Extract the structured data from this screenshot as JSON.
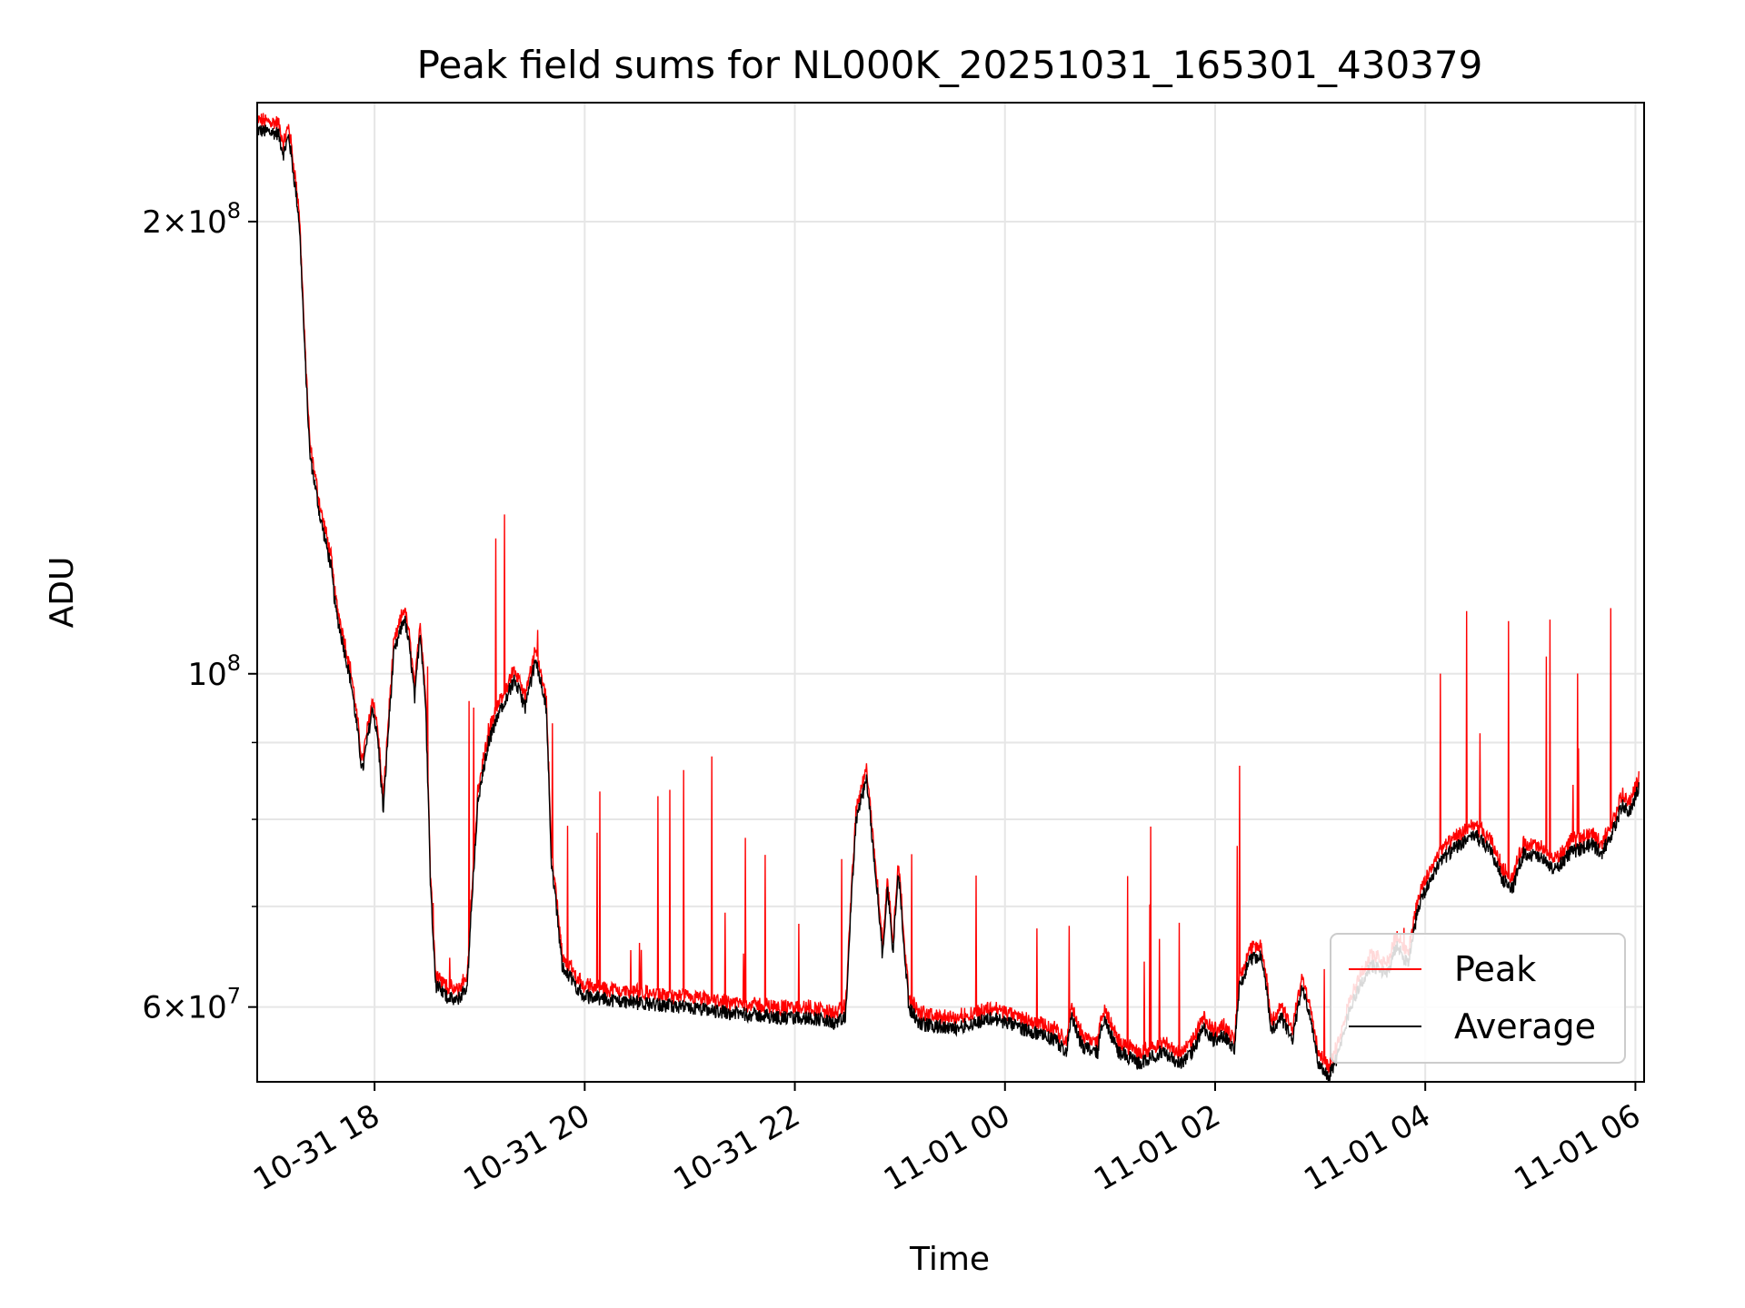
{
  "chart_data": {
    "type": "line",
    "title": "Peak field sums for NL000K_20251031_165301_430379",
    "xlabel": "Time",
    "ylabel": "ADU",
    "yscale": "log",
    "x_unit": "hours since 10-31 16:53",
    "xlim": [
      0.0,
      13.2
    ],
    "ylim": [
      53500000,
      240000000
    ],
    "x_ticks": [
      {
        "value": 1.117,
        "label": "10-31 18"
      },
      {
        "value": 3.117,
        "label": "10-31 20"
      },
      {
        "value": 5.117,
        "label": "10-31 22"
      },
      {
        "value": 7.117,
        "label": "11-01 00"
      },
      {
        "value": 9.117,
        "label": "11-01 02"
      },
      {
        "value": 11.117,
        "label": "11-01 04"
      },
      {
        "value": 13.117,
        "label": "11-01 06"
      }
    ],
    "y_major_ticks": [
      {
        "value": 60000000,
        "mant": "6",
        "exp": "7"
      },
      {
        "value": 100000000,
        "mant": "",
        "exp": "8"
      },
      {
        "value": 200000000,
        "mant": "2",
        "exp": "8"
      }
    ],
    "y_minor_ticks": [
      70000000,
      80000000,
      90000000
    ],
    "grid": true,
    "legend_position": "bottom-right",
    "series": [
      {
        "name": "Peak",
        "color": "#ff0000"
      },
      {
        "name": "Average",
        "color": "#000000"
      }
    ],
    "average_profile": [
      [
        0.0,
        230000000
      ],
      [
        0.2,
        229000000
      ],
      [
        0.25,
        222000000
      ],
      [
        0.3,
        228000000
      ],
      [
        0.4,
        200000000
      ],
      [
        0.45,
        165000000
      ],
      [
        0.5,
        140000000
      ],
      [
        0.6,
        127000000
      ],
      [
        0.7,
        118000000
      ],
      [
        0.75,
        110000000
      ],
      [
        0.8,
        106000000
      ],
      [
        0.9,
        98000000
      ],
      [
        1.0,
        86000000
      ],
      [
        1.1,
        95000000
      ],
      [
        1.15,
        90000000
      ],
      [
        1.2,
        81000000
      ],
      [
        1.3,
        103000000
      ],
      [
        1.4,
        109000000
      ],
      [
        1.45,
        104000000
      ],
      [
        1.5,
        96000000
      ],
      [
        1.55,
        107000000
      ],
      [
        1.6,
        96000000
      ],
      [
        1.65,
        72000000
      ],
      [
        1.7,
        62000000
      ],
      [
        1.8,
        61000000
      ],
      [
        1.9,
        60500000
      ],
      [
        2.0,
        62000000
      ],
      [
        2.05,
        72000000
      ],
      [
        2.1,
        82000000
      ],
      [
        2.2,
        90000000
      ],
      [
        2.35,
        96000000
      ],
      [
        2.45,
        99000000
      ],
      [
        2.55,
        95000000
      ],
      [
        2.65,
        102000000
      ],
      [
        2.75,
        95000000
      ],
      [
        2.8,
        75000000
      ],
      [
        2.9,
        64000000
      ],
      [
        3.1,
        61000000
      ],
      [
        3.5,
        60500000
      ],
      [
        4.0,
        60000000
      ],
      [
        4.5,
        59500000
      ],
      [
        5.0,
        59000000
      ],
      [
        5.3,
        59000000
      ],
      [
        5.5,
        58500000
      ],
      [
        5.6,
        59000000
      ],
      [
        5.7,
        80000000
      ],
      [
        5.8,
        85000000
      ],
      [
        5.85,
        78000000
      ],
      [
        5.9,
        72000000
      ],
      [
        5.95,
        65000000
      ],
      [
        6.0,
        72000000
      ],
      [
        6.05,
        65000000
      ],
      [
        6.1,
        74000000
      ],
      [
        6.2,
        60000000
      ],
      [
        6.3,
        58500000
      ],
      [
        6.6,
        58000000
      ],
      [
        7.0,
        59000000
      ],
      [
        7.3,
        58000000
      ],
      [
        7.6,
        57000000
      ],
      [
        7.7,
        56000000
      ],
      [
        7.75,
        59000000
      ],
      [
        7.85,
        56500000
      ],
      [
        8.0,
        56000000
      ],
      [
        8.05,
        59000000
      ],
      [
        8.1,
        58000000
      ],
      [
        8.2,
        56000000
      ],
      [
        8.4,
        55000000
      ],
      [
        8.5,
        55500000
      ],
      [
        8.6,
        56000000
      ],
      [
        8.8,
        55000000
      ],
      [
        8.9,
        56000000
      ],
      [
        9.0,
        58000000
      ],
      [
        9.1,
        57000000
      ],
      [
        9.2,
        57500000
      ],
      [
        9.3,
        56000000
      ],
      [
        9.35,
        62000000
      ],
      [
        9.45,
        64500000
      ],
      [
        9.55,
        65000000
      ],
      [
        9.6,
        62000000
      ],
      [
        9.65,
        58000000
      ],
      [
        9.75,
        59000000
      ],
      [
        9.85,
        57000000
      ],
      [
        9.95,
        62000000
      ],
      [
        10.05,
        58000000
      ],
      [
        10.1,
        55000000
      ],
      [
        10.2,
        54000000
      ],
      [
        10.3,
        56000000
      ],
      [
        10.4,
        60000000
      ],
      [
        10.6,
        64000000
      ],
      [
        10.75,
        63000000
      ],
      [
        10.85,
        66000000
      ],
      [
        10.95,
        64000000
      ],
      [
        11.05,
        70000000
      ],
      [
        11.25,
        75000000
      ],
      [
        11.45,
        77000000
      ],
      [
        11.6,
        78000000
      ],
      [
        11.75,
        76000000
      ],
      [
        11.85,
        73000000
      ],
      [
        11.95,
        72000000
      ],
      [
        12.05,
        76000000
      ],
      [
        12.2,
        75500000
      ],
      [
        12.35,
        74000000
      ],
      [
        12.5,
        76000000
      ],
      [
        12.7,
        77000000
      ],
      [
        12.8,
        76000000
      ],
      [
        12.9,
        78500000
      ],
      [
        13.0,
        82000000
      ],
      [
        13.05,
        80500000
      ],
      [
        13.15,
        84000000
      ]
    ]
  }
}
